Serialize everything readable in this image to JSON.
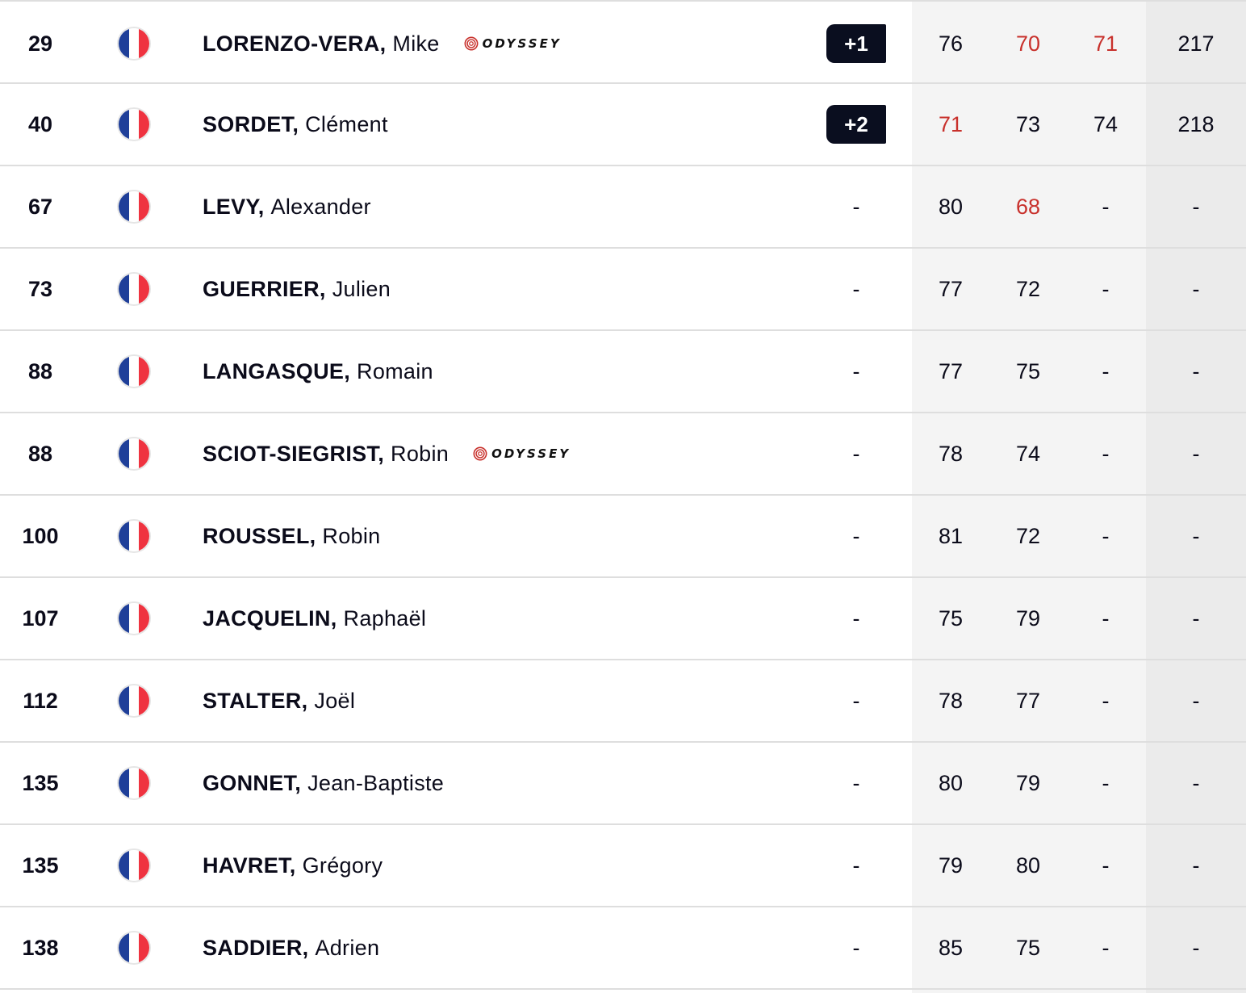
{
  "colors": {
    "under_par": "#c8302b",
    "badge_bg": "#0a0e1f",
    "flag_blue": "#1f3f99",
    "flag_red": "#ef3340"
  },
  "icons": {
    "flag": "france-flag-icon",
    "sponsor": "odyssey-logo-icon"
  },
  "rows": [
    {
      "pos": "29",
      "last": "LORENZO-VERA,",
      "first": "Mike",
      "sponsor": "ODYSSEY",
      "topar": "+1",
      "r1": "76",
      "r2": "70",
      "r3": "71",
      "total": "217",
      "under": [
        false,
        true,
        true,
        false
      ]
    },
    {
      "pos": "40",
      "last": "SORDET,",
      "first": "Clément",
      "sponsor": "",
      "topar": "+2",
      "r1": "71",
      "r2": "73",
      "r3": "74",
      "total": "218",
      "under": [
        true,
        false,
        false,
        false
      ]
    },
    {
      "pos": "67",
      "last": "LEVY,",
      "first": "Alexander",
      "sponsor": "",
      "topar": "-",
      "r1": "80",
      "r2": "68",
      "r3": "-",
      "total": "-",
      "under": [
        false,
        true,
        false,
        false
      ]
    },
    {
      "pos": "73",
      "last": "GUERRIER,",
      "first": "Julien",
      "sponsor": "",
      "topar": "-",
      "r1": "77",
      "r2": "72",
      "r3": "-",
      "total": "-",
      "under": [
        false,
        false,
        false,
        false
      ]
    },
    {
      "pos": "88",
      "last": "LANGASQUE,",
      "first": "Romain",
      "sponsor": "",
      "topar": "-",
      "r1": "77",
      "r2": "75",
      "r3": "-",
      "total": "-",
      "under": [
        false,
        false,
        false,
        false
      ]
    },
    {
      "pos": "88",
      "last": "SCIOT-SIEGRIST,",
      "first": "Robin",
      "sponsor": "ODYSSEY",
      "topar": "-",
      "r1": "78",
      "r2": "74",
      "r3": "-",
      "total": "-",
      "under": [
        false,
        false,
        false,
        false
      ]
    },
    {
      "pos": "100",
      "last": "ROUSSEL,",
      "first": "Robin",
      "sponsor": "",
      "topar": "-",
      "r1": "81",
      "r2": "72",
      "r3": "-",
      "total": "-",
      "under": [
        false,
        false,
        false,
        false
      ]
    },
    {
      "pos": "107",
      "last": "JACQUELIN,",
      "first": "Raphaël",
      "sponsor": "",
      "topar": "-",
      "r1": "75",
      "r2": "79",
      "r3": "-",
      "total": "-",
      "under": [
        false,
        false,
        false,
        false
      ]
    },
    {
      "pos": "112",
      "last": "STALTER,",
      "first": "Joël",
      "sponsor": "",
      "topar": "-",
      "r1": "78",
      "r2": "77",
      "r3": "-",
      "total": "-",
      "under": [
        false,
        false,
        false,
        false
      ]
    },
    {
      "pos": "135",
      "last": "GONNET,",
      "first": "Jean-Baptiste",
      "sponsor": "",
      "topar": "-",
      "r1": "80",
      "r2": "79",
      "r3": "-",
      "total": "-",
      "under": [
        false,
        false,
        false,
        false
      ]
    },
    {
      "pos": "135",
      "last": "HAVRET,",
      "first": "Grégory",
      "sponsor": "",
      "topar": "-",
      "r1": "79",
      "r2": "80",
      "r3": "-",
      "total": "-",
      "under": [
        false,
        false,
        false,
        false
      ]
    },
    {
      "pos": "138",
      "last": "SADDIER,",
      "first": "Adrien",
      "sponsor": "",
      "topar": "-",
      "r1": "85",
      "r2": "75",
      "r3": "-",
      "total": "-",
      "under": [
        false,
        false,
        false,
        false
      ]
    }
  ]
}
